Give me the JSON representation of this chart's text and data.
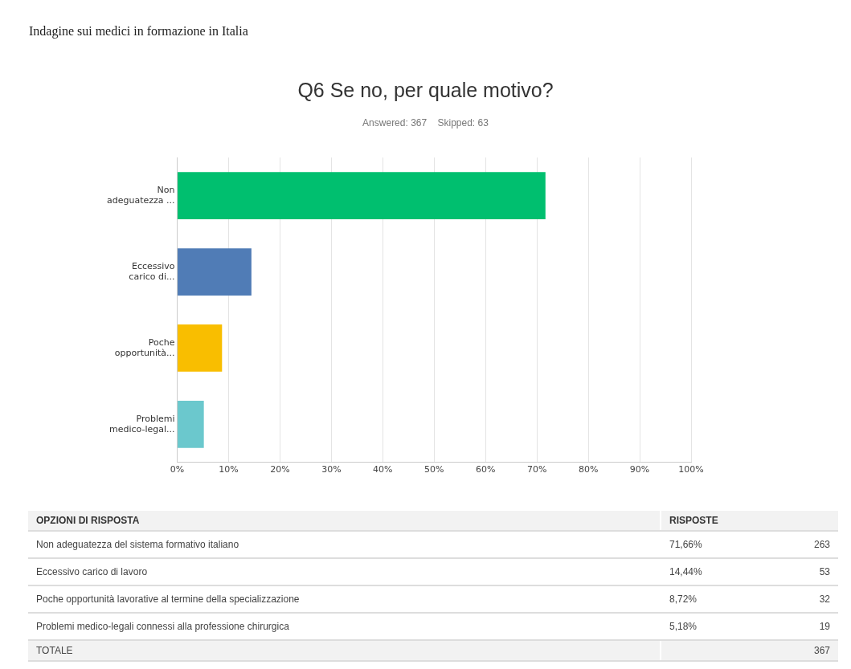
{
  "chart_data": {
    "type": "bar",
    "orientation": "horizontal",
    "title": "Q6 Se no, per quale motivo?",
    "subtitle": "Answered: 367    Skipped: 63",
    "categories": [
      "Non adeguatezza ...",
      "Eccessivo carico di...",
      "Poche opportunità...",
      "Problemi medico-legal..."
    ],
    "series": [
      {
        "values": [
          71.66,
          14.44,
          8.72,
          5.18
        ],
        "colors": [
          "#00bf6f",
          "#507cb6",
          "#f9be00",
          "#6bc8cd"
        ]
      }
    ],
    "xlim": [
      0,
      100
    ],
    "xticks": [
      {
        "value": 0,
        "label": "0%"
      },
      {
        "value": 10,
        "label": "10%"
      },
      {
        "value": 20,
        "label": "20%"
      },
      {
        "value": 30,
        "label": "30%"
      },
      {
        "value": 40,
        "label": "40%"
      },
      {
        "value": 50,
        "label": "50%"
      },
      {
        "value": 60,
        "label": "60%"
      },
      {
        "value": 70,
        "label": "70%"
      },
      {
        "value": 80,
        "label": "80%"
      },
      {
        "value": 90,
        "label": "90%"
      },
      {
        "value": 100,
        "label": "100%"
      }
    ],
    "grid": "x",
    "legend": false,
    "annotations": [
      "Indagine sui medici in formazione in Italia",
      "OPZIONI DI RISPOSTA",
      "RISPOSTE",
      "Non adeguatezza del sistema formativo italiano",
      "Eccessivo carico di lavoro",
      "Poche opportunità lavorative al termine della specializzazione",
      "Problemi medico-legali connessi alla professione chirurgica",
      "263",
      "53",
      "32",
      "19",
      "TOTALE",
      "367",
      "71,66%",
      "14,44%",
      "8,72%",
      "5,18%"
    ]
  }
}
